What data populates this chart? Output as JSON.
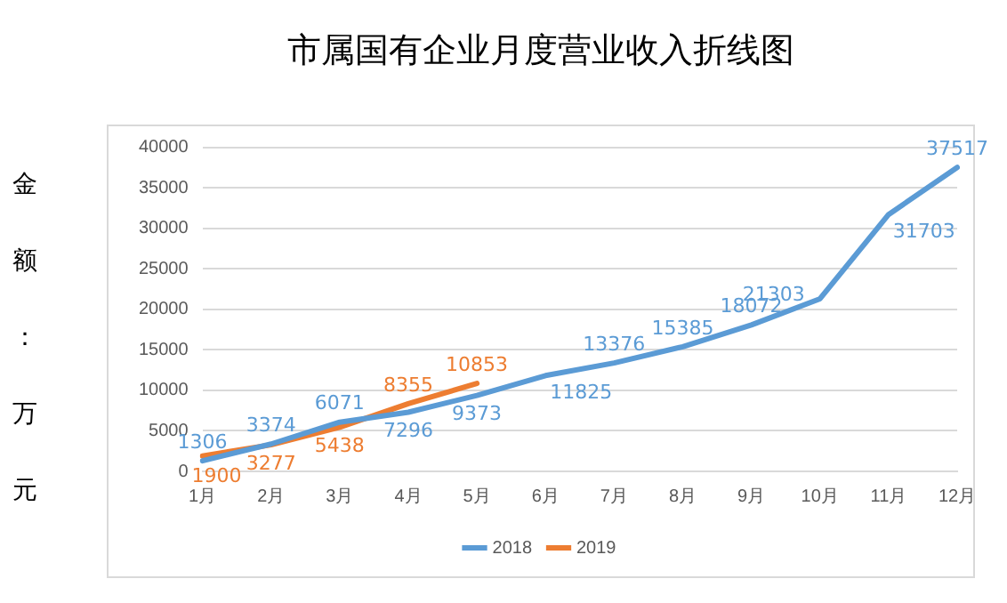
{
  "chart_data": {
    "type": "line",
    "title": "市属国有企业月度营业收入折线图",
    "ylabel": "金额：万元",
    "categories": [
      "1月",
      "2月",
      "3月",
      "4月",
      "5月",
      "6月",
      "7月",
      "8月",
      "9月",
      "10月",
      "11月",
      "12月"
    ],
    "series": [
      {
        "name": "2018",
        "color": "#5b9bd5",
        "values": [
          1306,
          3374,
          6071,
          7296,
          9373,
          11825,
          13376,
          15385,
          18072,
          21303,
          31703,
          37517
        ]
      },
      {
        "name": "2019",
        "color": "#ed7d31",
        "values": [
          1900,
          3277,
          5438,
          8355,
          10853,
          null,
          null,
          null,
          null,
          null,
          null,
          null
        ]
      }
    ],
    "ylim": [
      0,
      40000
    ],
    "yticks": [
      0,
      5000,
      10000,
      15000,
      20000,
      25000,
      30000,
      35000,
      40000
    ],
    "grid": "y",
    "legend": "bottom",
    "data_labels": true,
    "marker": "none",
    "line_style": "solid"
  }
}
